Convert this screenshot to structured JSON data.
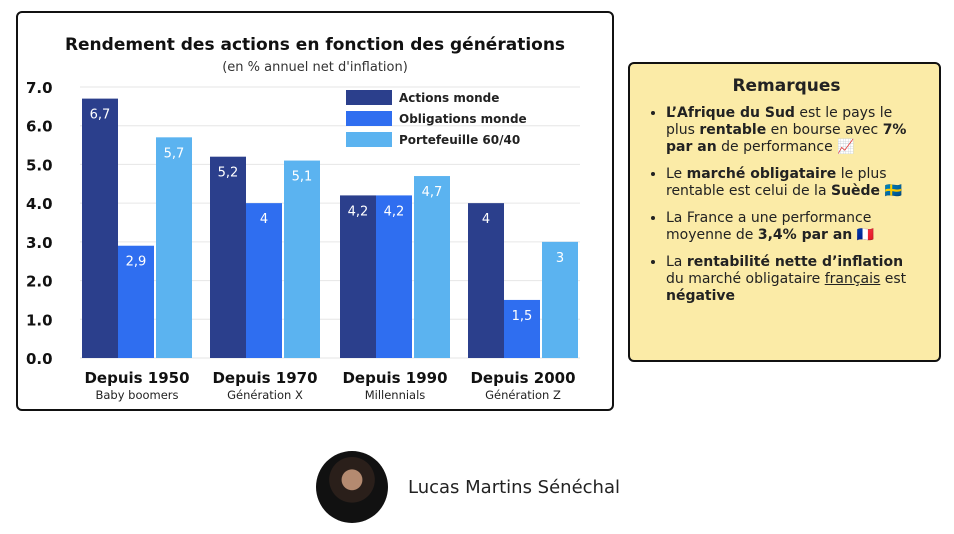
{
  "chart_data": {
    "type": "bar",
    "title": "Rendement des actions en fonction des générations",
    "subtitle": "(en % annuel net d'inflation)",
    "categories": [
      "Depuis 1950",
      "Depuis 1970",
      "Depuis 1990",
      "Depuis 2000"
    ],
    "subcategories": [
      "Baby boomers",
      "Génération X",
      "Millennials",
      "Génération Z"
    ],
    "series": [
      {
        "name": "Actions monde",
        "color": "#2b3f8c",
        "values": [
          6.7,
          5.2,
          4.2,
          4
        ],
        "labels": [
          "6,7",
          "5,2",
          "4,2",
          "4"
        ]
      },
      {
        "name": "Obligations monde",
        "color": "#2f6ef0",
        "values": [
          2.9,
          4,
          4.2,
          1.5
        ],
        "labels": [
          "2,9",
          "4",
          "4,2",
          "1,5"
        ]
      },
      {
        "name": "Portefeuille 60/40",
        "color": "#5bb3f0",
        "values": [
          5.7,
          5.1,
          4.7,
          3
        ],
        "labels": [
          "5,7",
          "5,1",
          "4,7",
          "3"
        ]
      }
    ],
    "yticks": [
      "0.0",
      "1.0",
      "2.0",
      "3.0",
      "4.0",
      "5.0",
      "6.0",
      "7.0"
    ],
    "ylim": [
      0,
      7
    ],
    "legend": "top-right",
    "grid": true
  },
  "remarks": {
    "title": "Remarques",
    "items": [
      [
        {
          "t": "L’Afrique du Sud",
          "b": 1
        },
        {
          "t": " est le pays le plus "
        },
        {
          "t": "rentable",
          "b": 1
        },
        {
          "t": " en bourse avec "
        },
        {
          "t": "7% par an",
          "b": 1
        },
        {
          "t": " de performance 📈"
        }
      ],
      [
        {
          "t": "Le "
        },
        {
          "t": "marché obligataire",
          "b": 1
        },
        {
          "t": " le plus rentable est celui de la "
        },
        {
          "t": "Suède",
          "b": 1
        },
        {
          "t": " 🇸🇪"
        }
      ],
      [
        {
          "t": "La France a une performance moyenne de "
        },
        {
          "t": "3,4% par an",
          "b": 1
        },
        {
          "t": " 🇫🇷"
        }
      ],
      [
        {
          "t": "La "
        },
        {
          "t": "rentabilité nette d’inflation",
          "b": 1
        },
        {
          "t": " du marché obligataire "
        },
        {
          "t": "français",
          "u": 1
        },
        {
          "t": " est "
        },
        {
          "t": "négative",
          "b": 1
        }
      ]
    ]
  },
  "author": {
    "name": "Lucas Martins Sénéchal"
  }
}
